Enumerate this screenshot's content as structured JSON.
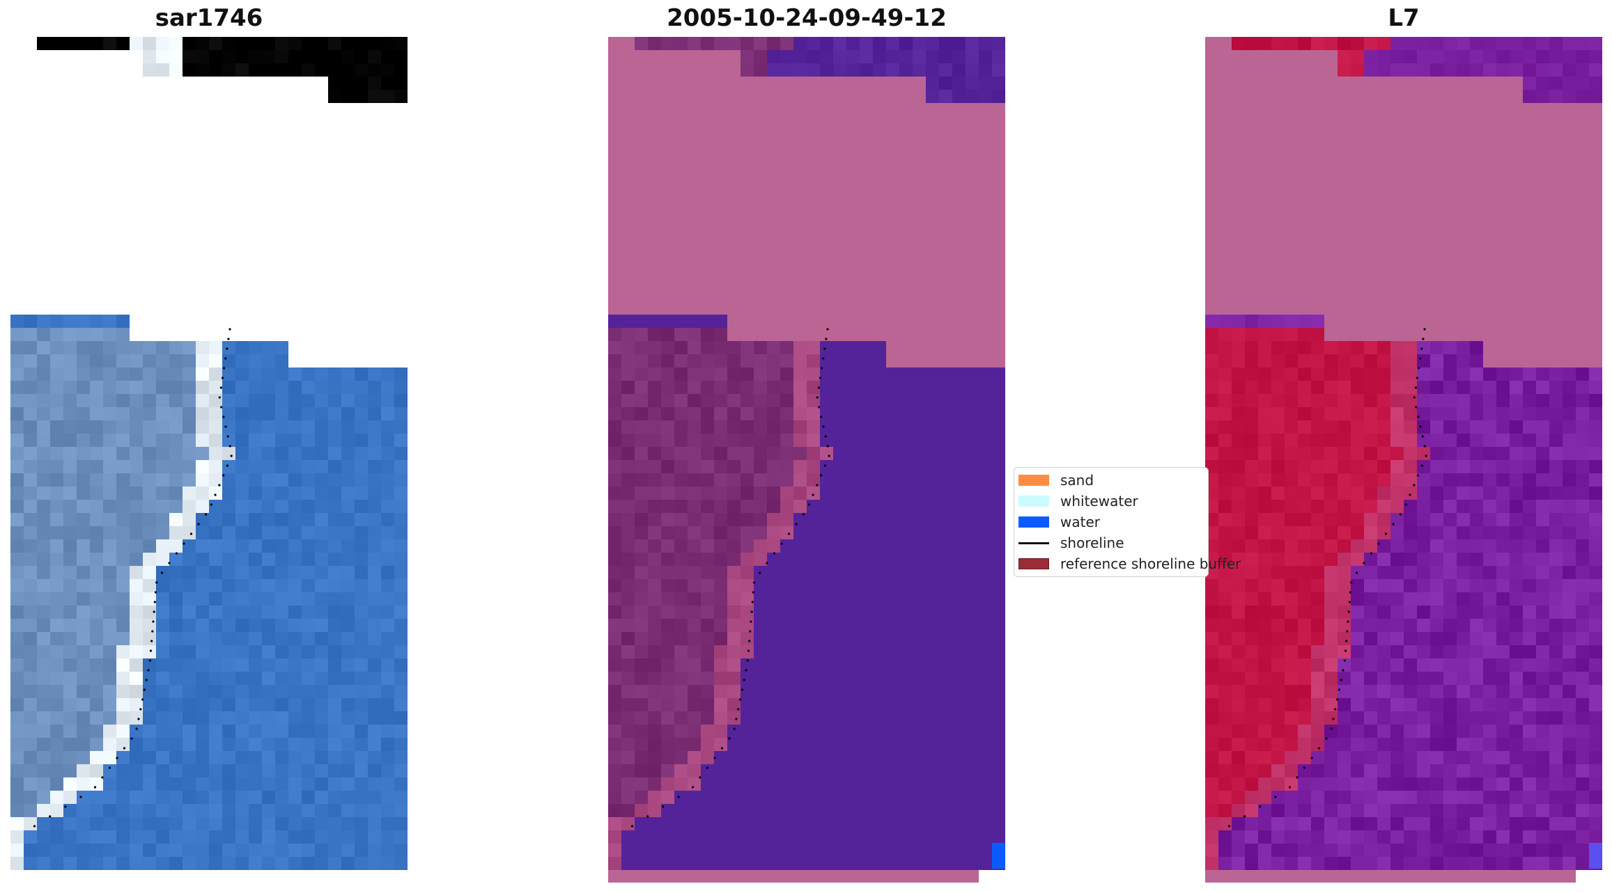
{
  "panels": [
    {
      "title": "sar1746"
    },
    {
      "title": "2005-10-24-09-49-12"
    },
    {
      "title": "L7"
    }
  ],
  "legend": {
    "items": [
      {
        "label": "sand",
        "color": "#ff8c42"
      },
      {
        "label": "whitewater",
        "color": "#ccfbff"
      },
      {
        "label": "water",
        "color": "#0a5cff"
      },
      {
        "label": "shoreline",
        "color": "#000000"
      },
      {
        "label": "reference shoreline buffer",
        "color": "#9b2c35"
      }
    ]
  },
  "colors": {
    "rgb_water": "#3a74c4",
    "rgb_land": "#6d8fbd",
    "rgb_foam": "#e6eef6",
    "class_landmask": "#bb6595",
    "class_land": "#7a2d72",
    "class_water": "#54239a",
    "class_water_bright": "#0a5cff",
    "mndwi_landmask": "#bb6595",
    "mndwi_land": "#c21545",
    "mndwi_water": "#7a1ea0",
    "mndwi_water_bright": "#5b4ff0"
  }
}
